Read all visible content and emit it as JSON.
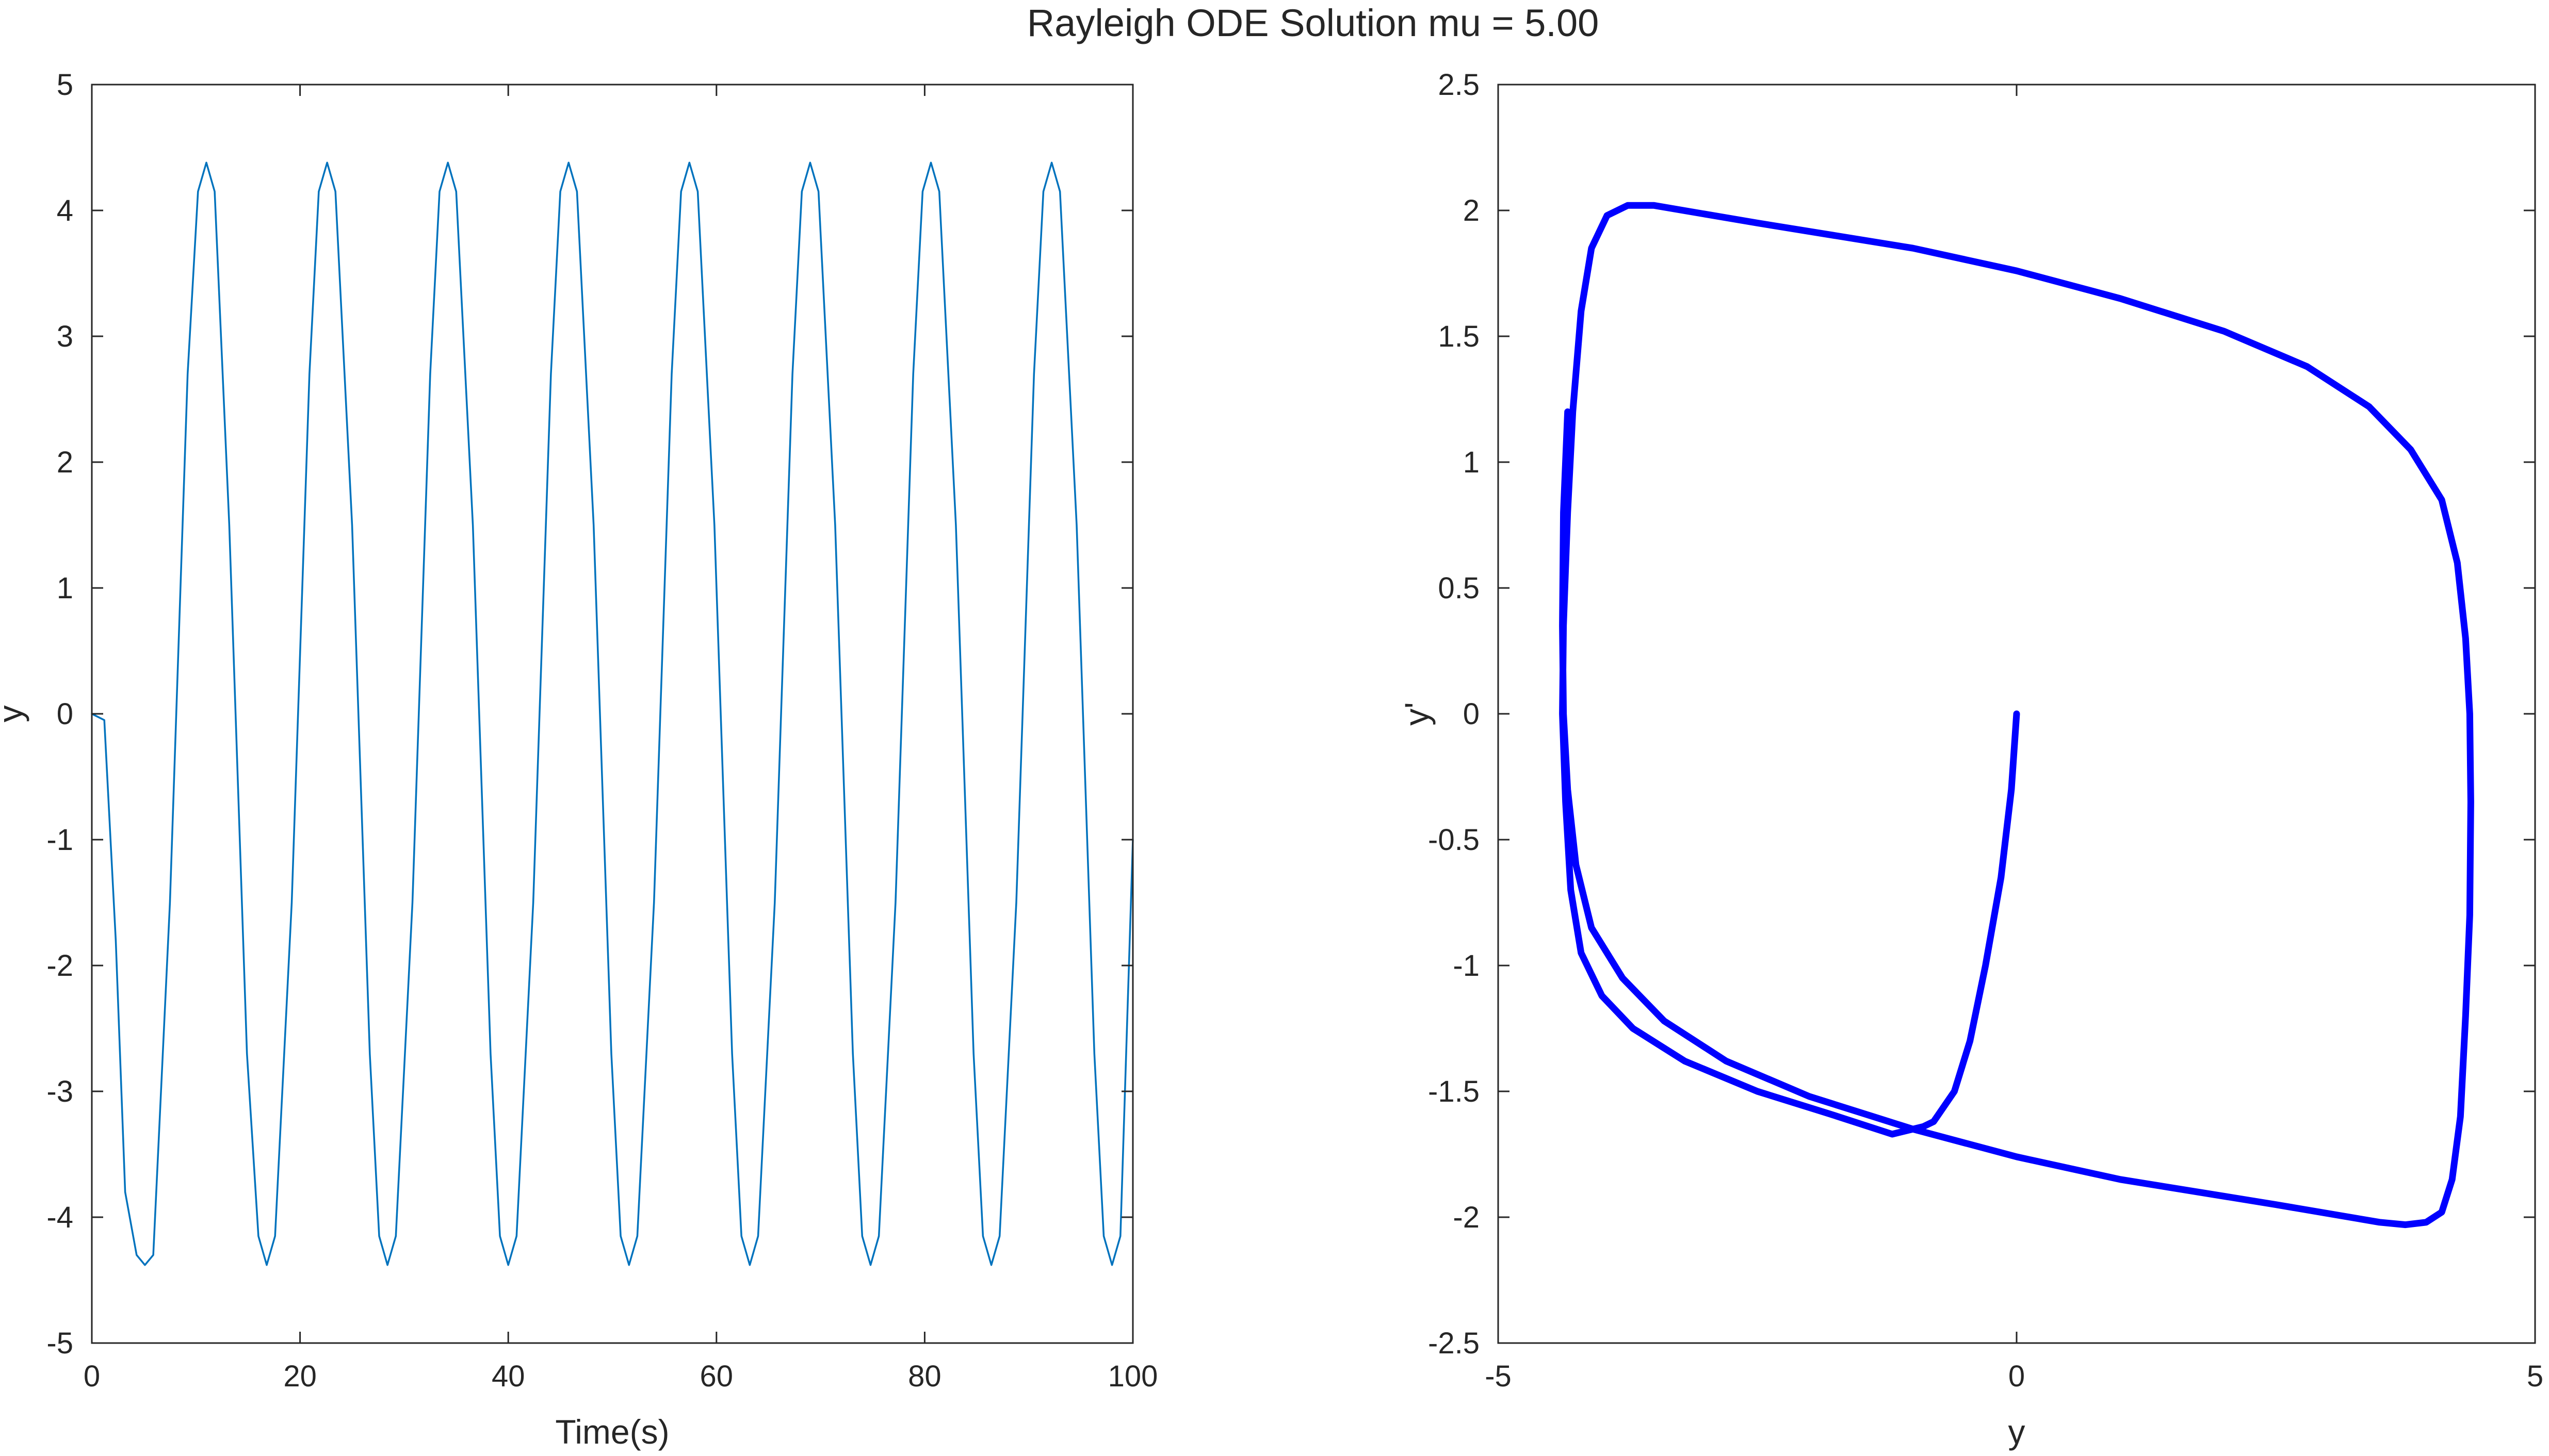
{
  "title": "Rayleigh ODE Solution mu = 5.00",
  "chart_data": [
    {
      "type": "line",
      "title": "",
      "xlabel": "Time(s)",
      "ylabel": "y",
      "xlim": [
        0,
        100
      ],
      "ylim": [
        -5,
        5
      ],
      "xticks": [
        0,
        20,
        40,
        60,
        80,
        100
      ],
      "yticks": [
        -5,
        -4,
        -3,
        -2,
        -1,
        0,
        1,
        2,
        3,
        4,
        5
      ],
      "grid": false,
      "box": true,
      "series": [
        {
          "color": "#0072BD",
          "x": [
            0,
            1.2,
            2.3,
            3.2,
            4.3,
            5.1,
            5.9,
            7.5,
            9.2,
            10.2,
            11.0,
            11.8,
            13.2,
            14.9,
            16.0,
            16.8,
            17.6,
            19.2,
            20.9,
            21.8,
            22.6,
            23.4,
            25.0,
            26.7,
            27.6,
            28.4,
            29.2,
            30.8,
            32.5,
            33.4,
            34.2,
            35.0,
            36.6,
            38.3,
            39.2,
            40.0,
            40.8,
            42.4,
            44.1,
            45.0,
            45.8,
            46.6,
            48.2,
            49.9,
            50.8,
            51.6,
            52.4,
            54.0,
            55.7,
            56.6,
            57.4,
            58.2,
            59.8,
            61.5,
            62.4,
            63.2,
            64.0,
            65.6,
            67.3,
            68.2,
            69.0,
            69.8,
            71.4,
            73.1,
            74.0,
            74.8,
            75.6,
            77.2,
            78.9,
            79.8,
            80.6,
            81.4,
            83.0,
            84.7,
            85.6,
            86.4,
            87.2,
            88.8,
            90.5,
            91.4,
            92.2,
            93.0,
            94.6,
            96.3,
            97.2,
            98.0,
            98.8,
            100.0
          ],
          "y": [
            0,
            -0.05,
            -1.8,
            -3.8,
            -4.3,
            -4.38,
            -4.3,
            -1.5,
            2.7,
            4.15,
            4.38,
            4.15,
            1.5,
            -2.7,
            -4.15,
            -4.38,
            -4.15,
            -1.5,
            2.7,
            4.15,
            4.38,
            4.15,
            1.5,
            -2.7,
            -4.15,
            -4.38,
            -4.15,
            -1.5,
            2.7,
            4.15,
            4.38,
            4.15,
            1.5,
            -2.7,
            -4.15,
            -4.38,
            -4.15,
            -1.5,
            2.7,
            4.15,
            4.38,
            4.15,
            1.5,
            -2.7,
            -4.15,
            -4.38,
            -4.15,
            -1.5,
            2.7,
            4.15,
            4.38,
            4.15,
            1.5,
            -2.7,
            -4.15,
            -4.38,
            -4.15,
            -1.5,
            2.7,
            4.15,
            4.38,
            4.15,
            1.5,
            -2.7,
            -4.15,
            -4.38,
            -4.15,
            -1.5,
            2.7,
            4.15,
            4.38,
            4.15,
            1.5,
            -2.7,
            -4.15,
            -4.38,
            -4.15,
            -1.5,
            2.7,
            4.15,
            4.38,
            4.15,
            1.5,
            -2.7,
            -4.15,
            -4.38,
            -4.15,
            -1.0
          ]
        }
      ]
    },
    {
      "type": "line",
      "title": "",
      "xlabel": "y",
      "ylabel": "y'",
      "xlim": [
        -5,
        5
      ],
      "ylim": [
        -2.5,
        2.5
      ],
      "xticks": [
        -5,
        0,
        5
      ],
      "yticks": [
        -2.5,
        -2,
        -1.5,
        -1,
        -0.5,
        0,
        0.5,
        1,
        1.5,
        2,
        2.5
      ],
      "grid": false,
      "box": true,
      "series": [
        {
          "color": "#0000FF",
          "x": [
            0,
            -0.05,
            -0.15,
            -0.3,
            -0.45,
            -0.6,
            -0.8,
            -0.9,
            -1.2,
            -1.8,
            -2.5,
            -3.2,
            -3.7,
            -4.0,
            -4.2,
            -4.3,
            -4.35,
            -4.38,
            -4.37,
            -4.33,
            -4.28,
            -4.2,
            -4.1,
            -3.95,
            -3.75,
            -3.5,
            -2.5,
            -1.0,
            0,
            1.0,
            2.0,
            2.8,
            3.4,
            3.8,
            4.1,
            4.25,
            4.33,
            4.37,
            4.38,
            4.37,
            4.33,
            4.28,
            4.2,
            4.1,
            3.95,
            3.75,
            3.5,
            2.5,
            1.0,
            0,
            -1.0,
            -2.0,
            -2.8,
            -3.4,
            -3.8,
            -4.1,
            -4.25,
            -4.33,
            -4.37,
            -4.38,
            -4.37,
            -4.33
          ],
          "y": [
            0,
            -0.3,
            -0.65,
            -1.0,
            -1.3,
            -1.5,
            -1.62,
            -1.64,
            -1.67,
            -1.59,
            -1.5,
            -1.38,
            -1.25,
            -1.12,
            -0.95,
            -0.7,
            -0.35,
            0,
            0.35,
            0.8,
            1.2,
            1.6,
            1.85,
            1.98,
            2.02,
            2.02,
            1.95,
            1.85,
            1.76,
            1.65,
            1.52,
            1.38,
            1.22,
            1.05,
            0.85,
            0.6,
            0.3,
            0,
            -0.35,
            -0.8,
            -1.2,
            -1.6,
            -1.85,
            -1.98,
            -2.02,
            -2.03,
            -2.02,
            -1.95,
            -1.85,
            -1.76,
            -1.65,
            -1.52,
            -1.38,
            -1.22,
            -1.05,
            -0.85,
            -0.6,
            -0.3,
            0,
            0.35,
            0.8,
            1.2
          ]
        }
      ]
    }
  ]
}
